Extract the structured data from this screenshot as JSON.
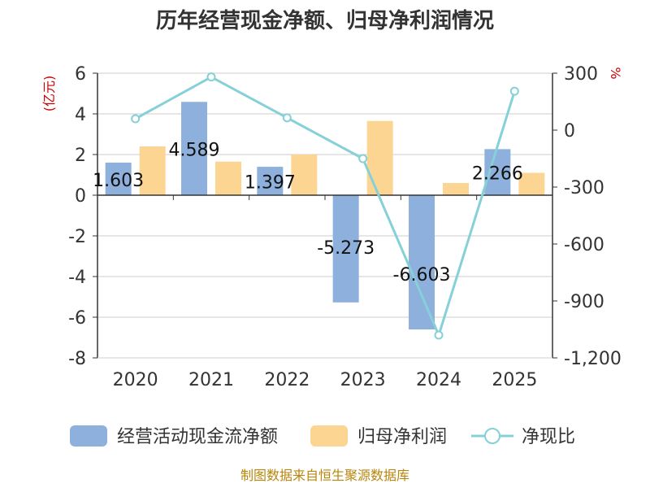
{
  "chart_data": {
    "type": "bar+line",
    "title": "历年经营现金净额、归母净利润情况",
    "categories": [
      "2020",
      "2021",
      "2022",
      "2023",
      "2024",
      "2025"
    ],
    "left_axis": {
      "unit": "(亿元)",
      "ylim": [
        -8,
        6
      ],
      "ticks": [
        "6",
        "4",
        "2",
        "0",
        "-2",
        "-4",
        "-6",
        "-8"
      ]
    },
    "right_axis": {
      "unit": "%",
      "ylim": [
        -1200,
        300
      ],
      "ticks": [
        "300",
        "0",
        "-300",
        "-600",
        "-900",
        "-1,200"
      ]
    },
    "series": [
      {
        "name": "经营活动现金流净额",
        "type": "bar",
        "axis": "left",
        "color": "#8eb0dc",
        "values": [
          1.603,
          4.589,
          1.397,
          -5.273,
          -6.603,
          2.266
        ],
        "labels": [
          "1.603",
          "4.589",
          "1.397",
          "-5.273",
          "-6.603",
          "2.266"
        ]
      },
      {
        "name": "归母净利润",
        "type": "bar",
        "axis": "left",
        "color": "#fdd592",
        "values": [
          2.4,
          1.65,
          2.0,
          3.65,
          0.6,
          1.1
        ]
      },
      {
        "name": "净现比",
        "type": "line",
        "axis": "right",
        "color": "#86d0d8",
        "values": [
          60,
          280,
          65,
          -150,
          -1080,
          205
        ]
      }
    ],
    "legend_position": "bottom",
    "grid": true,
    "source": "制图数据来自恒生聚源数据库"
  }
}
